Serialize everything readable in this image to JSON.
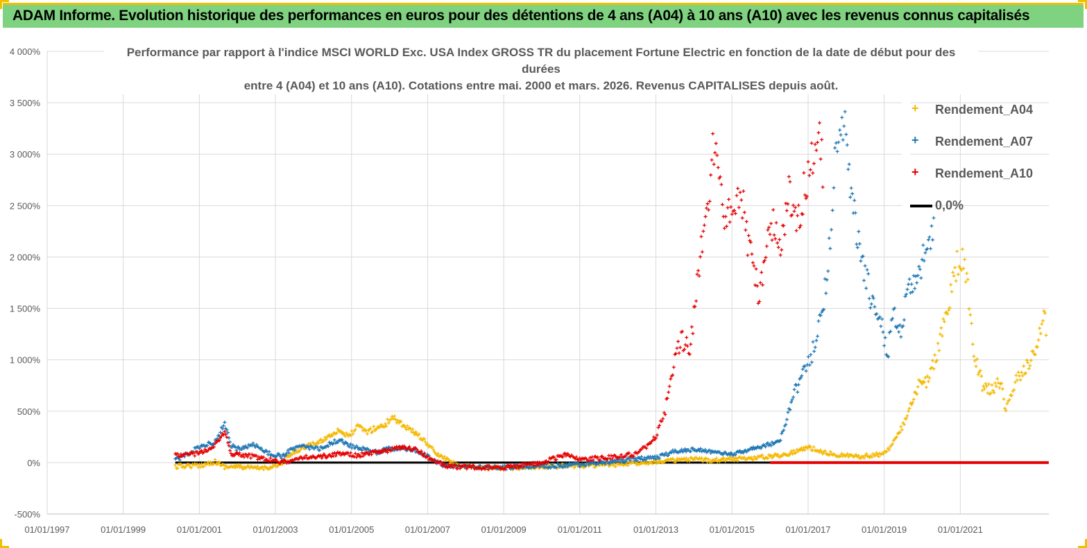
{
  "header": {
    "title": "ADAM Informe. Evolution historique des performances en euros pour des détentions de 4 ans (A04) à 10 ans (A10) avec les revenus connus capitalisés"
  },
  "chart_data": {
    "type": "scatter",
    "title_line1": "Performance par rapport à l'indice MSCI WORLD Exc. USA Index GROSS TR  du placement Fortune Electric  en fonction de la date de début pour des durées",
    "title_line2": "entre 4 (A04) et 10 ans (A10).  Cotations entre mai. 2000 et mars. 2026. Revenus CAPITALISES depuis août.",
    "xlabel": "",
    "ylabel": "",
    "x_ticks": [
      "01/01/1997",
      "01/01/1999",
      "01/01/2001",
      "01/01/2003",
      "01/01/2005",
      "01/01/2007",
      "01/01/2009",
      "01/01/2011",
      "01/01/2013",
      "01/01/2015",
      "01/01/2017",
      "01/01/2019",
      "01/01/2021"
    ],
    "xlim": [
      "1997-01-01",
      "2023-05-01"
    ],
    "y_ticks": [
      "4 000%",
      "3 500%",
      "3 000%",
      "2 500%",
      "2 000%",
      "1 500%",
      "1 000%",
      "500%",
      "0%",
      "-500%"
    ],
    "ylim": [
      -500,
      4000
    ],
    "grid": true,
    "legend_position": "top-right",
    "series": [
      {
        "name": "Rendement_A04",
        "color": "#f5b800",
        "marker": "+",
        "points": [
          [
            "2000-05-15",
            -40
          ],
          [
            "2000-09-01",
            -30
          ],
          [
            "2001-01-01",
            -30
          ],
          [
            "2001-06-01",
            10
          ],
          [
            "2001-09-01",
            -40
          ],
          [
            "2002-01-01",
            -40
          ],
          [
            "2002-06-01",
            -55
          ],
          [
            "2002-10-01",
            -50
          ],
          [
            "2003-03-01",
            -20
          ],
          [
            "2003-06-01",
            80
          ],
          [
            "2003-10-01",
            150
          ],
          [
            "2004-03-01",
            200
          ],
          [
            "2004-06-01",
            260
          ],
          [
            "2004-09-01",
            320
          ],
          [
            "2004-12-01",
            250
          ],
          [
            "2005-03-01",
            350
          ],
          [
            "2005-06-01",
            300
          ],
          [
            "2005-09-01",
            340
          ],
          [
            "2005-12-01",
            370
          ],
          [
            "2006-01-15",
            450
          ],
          [
            "2006-04-01",
            400
          ],
          [
            "2006-07-01",
            330
          ],
          [
            "2006-10-01",
            270
          ],
          [
            "2007-01-01",
            180
          ],
          [
            "2007-04-01",
            80
          ],
          [
            "2007-07-01",
            30
          ],
          [
            "2007-10-01",
            -20
          ],
          [
            "2008-01-01",
            -40
          ],
          [
            "2008-06-01",
            -50
          ],
          [
            "2009-01-01",
            -55
          ],
          [
            "2009-06-01",
            -45
          ],
          [
            "2010-01-01",
            -40
          ],
          [
            "2010-06-01",
            -35
          ],
          [
            "2011-01-01",
            -30
          ],
          [
            "2011-06-01",
            -25
          ],
          [
            "2012-01-01",
            -20
          ],
          [
            "2012-06-01",
            -5
          ],
          [
            "2013-01-01",
            10
          ],
          [
            "2013-06-01",
            20
          ],
          [
            "2014-01-01",
            30
          ],
          [
            "2014-06-01",
            25
          ],
          [
            "2015-01-01",
            35
          ],
          [
            "2015-06-01",
            40
          ],
          [
            "2016-01-01",
            60
          ],
          [
            "2016-06-01",
            80
          ],
          [
            "2017-01-01",
            150
          ],
          [
            "2017-06-01",
            100
          ],
          [
            "2017-12-01",
            70
          ],
          [
            "2018-06-01",
            60
          ],
          [
            "2018-12-01",
            80
          ],
          [
            "2019-03-01",
            150
          ],
          [
            "2019-06-01",
            300
          ],
          [
            "2019-09-01",
            500
          ],
          [
            "2019-12-01",
            750
          ],
          [
            "2020-03-01",
            800
          ],
          [
            "2020-06-01",
            1100
          ],
          [
            "2020-09-01",
            1500
          ],
          [
            "2020-12-01",
            1900
          ],
          [
            "2021-02-01",
            2000
          ],
          [
            "2021-03-15",
            1700
          ],
          [
            "2021-05-01",
            1100
          ],
          [
            "2021-08-01",
            750
          ],
          [
            "2021-11-01",
            700
          ],
          [
            "2022-02-01",
            800
          ],
          [
            "2022-03-15",
            500
          ],
          [
            "2022-06-01",
            750
          ],
          [
            "2022-09-01",
            900
          ],
          [
            "2022-12-01",
            1050
          ],
          [
            "2023-02-01",
            1200
          ],
          [
            "2023-03-15",
            1500
          ],
          [
            "2023-04-15",
            1250
          ]
        ]
      },
      {
        "name": "Rendement_A07",
        "color": "#1f77b4",
        "marker": "+",
        "points": [
          [
            "2000-05-15",
            20
          ],
          [
            "2000-09-01",
            80
          ],
          [
            "2001-01-01",
            150
          ],
          [
            "2001-06-01",
            200
          ],
          [
            "2001-09-01",
            380
          ],
          [
            "2001-11-01",
            170
          ],
          [
            "2002-01-01",
            130
          ],
          [
            "2002-06-01",
            180
          ],
          [
            "2002-10-01",
            100
          ],
          [
            "2003-03-01",
            60
          ],
          [
            "2003-06-01",
            120
          ],
          [
            "2003-10-01",
            160
          ],
          [
            "2004-03-01",
            130
          ],
          [
            "2004-06-01",
            180
          ],
          [
            "2004-09-01",
            220
          ],
          [
            "2004-12-01",
            170
          ],
          [
            "2005-03-01",
            140
          ],
          [
            "2005-06-01",
            130
          ],
          [
            "2005-09-01",
            100
          ],
          [
            "2005-12-01",
            130
          ],
          [
            "2006-04-01",
            140
          ],
          [
            "2006-07-01",
            130
          ],
          [
            "2006-10-01",
            110
          ],
          [
            "2007-01-01",
            60
          ],
          [
            "2007-04-01",
            0
          ],
          [
            "2007-07-01",
            -30
          ],
          [
            "2008-01-01",
            -40
          ],
          [
            "2008-06-01",
            -50
          ],
          [
            "2009-01-01",
            -50
          ],
          [
            "2009-06-01",
            -40
          ],
          [
            "2010-01-01",
            -35
          ],
          [
            "2010-06-01",
            -30
          ],
          [
            "2011-01-01",
            -20
          ],
          [
            "2011-06-01",
            0
          ],
          [
            "2012-01-01",
            10
          ],
          [
            "2012-06-01",
            30
          ],
          [
            "2013-01-01",
            50
          ],
          [
            "2013-06-01",
            100
          ],
          [
            "2014-01-01",
            130
          ],
          [
            "2014-06-01",
            110
          ],
          [
            "2015-01-01",
            80
          ],
          [
            "2015-06-01",
            120
          ],
          [
            "2016-01-01",
            180
          ],
          [
            "2016-04-01",
            200
          ],
          [
            "2016-06-01",
            400
          ],
          [
            "2016-09-01",
            700
          ],
          [
            "2016-12-01",
            900
          ],
          [
            "2017-01-15",
            1000
          ],
          [
            "2017-04-01",
            1200
          ],
          [
            "2017-06-01",
            1600
          ],
          [
            "2017-08-01",
            2200
          ],
          [
            "2017-09-15",
            2900
          ],
          [
            "2017-11-01",
            3500
          ],
          [
            "2018-01-01",
            3100
          ],
          [
            "2018-03-01",
            2500
          ],
          [
            "2018-06-01",
            2000
          ],
          [
            "2018-09-01",
            1600
          ],
          [
            "2018-12-01",
            1400
          ],
          [
            "2019-02-01",
            1000
          ],
          [
            "2019-04-01",
            1500
          ],
          [
            "2019-06-01",
            1300
          ],
          [
            "2019-09-01",
            1700
          ],
          [
            "2019-12-01",
            1900
          ],
          [
            "2020-03-01",
            2100
          ],
          [
            "2020-05-01",
            2300
          ]
        ]
      },
      {
        "name": "Rendement_A10",
        "color": "#e60000",
        "marker": "+",
        "points": [
          [
            "2000-05-15",
            70
          ],
          [
            "2000-09-01",
            80
          ],
          [
            "2001-01-01",
            90
          ],
          [
            "2001-06-01",
            170
          ],
          [
            "2001-09-01",
            300
          ],
          [
            "2001-11-01",
            90
          ],
          [
            "2002-01-01",
            80
          ],
          [
            "2002-06-01",
            60
          ],
          [
            "2002-10-01",
            30
          ],
          [
            "2003-03-01",
            10
          ],
          [
            "2003-06-01",
            20
          ],
          [
            "2003-10-01",
            50
          ],
          [
            "2004-03-01",
            60
          ],
          [
            "2004-06-01",
            70
          ],
          [
            "2004-09-01",
            90
          ],
          [
            "2004-12-01",
            80
          ],
          [
            "2005-03-01",
            70
          ],
          [
            "2005-06-01",
            90
          ],
          [
            "2005-09-01",
            100
          ],
          [
            "2005-12-01",
            110
          ],
          [
            "2006-04-01",
            150
          ],
          [
            "2006-07-01",
            140
          ],
          [
            "2006-10-01",
            120
          ],
          [
            "2007-01-01",
            50
          ],
          [
            "2007-04-01",
            0
          ],
          [
            "2007-07-01",
            -30
          ],
          [
            "2008-01-01",
            -45
          ],
          [
            "2008-06-01",
            -45
          ],
          [
            "2009-01-01",
            -50
          ],
          [
            "2009-06-01",
            -30
          ],
          [
            "2010-01-01",
            0
          ],
          [
            "2010-06-01",
            50
          ],
          [
            "2010-09-01",
            80
          ],
          [
            "2011-01-01",
            30
          ],
          [
            "2011-06-01",
            40
          ],
          [
            "2012-01-01",
            60
          ],
          [
            "2012-06-01",
            80
          ],
          [
            "2012-10-01",
            150
          ],
          [
            "2013-01-01",
            250
          ],
          [
            "2013-04-01",
            500
          ],
          [
            "2013-06-01",
            900
          ],
          [
            "2013-09-01",
            1200
          ],
          [
            "2013-12-01",
            1100
          ],
          [
            "2014-02-01",
            1800
          ],
          [
            "2014-04-01",
            2200
          ],
          [
            "2014-06-01",
            2700
          ],
          [
            "2014-08-01",
            3300
          ],
          [
            "2014-10-01",
            2500
          ],
          [
            "2015-01-01",
            2300
          ],
          [
            "2015-04-01",
            2600
          ],
          [
            "2015-07-01",
            2000
          ],
          [
            "2015-10-01",
            1600
          ],
          [
            "2016-01-01",
            2400
          ],
          [
            "2016-04-01",
            2100
          ],
          [
            "2016-07-01",
            2600
          ],
          [
            "2016-10-01",
            2400
          ],
          [
            "2017-01-01",
            2800
          ],
          [
            "2017-04-01",
            3200
          ],
          [
            "2017-06-01",
            2800
          ]
        ]
      }
    ],
    "reference_line": {
      "name": "0,0%",
      "color": "#000000",
      "value": 0,
      "x_range": [
        "2000-05-15",
        "2016-01-01"
      ],
      "continuation_color": "#e60000",
      "continuation_x_range": [
        "2016-01-01",
        "2023-04-30"
      ]
    }
  },
  "colors": {
    "banner": "#7fd27f",
    "banner_accent": "#f0c000",
    "grid": "#d9d9d9",
    "tick_text": "#595959"
  }
}
